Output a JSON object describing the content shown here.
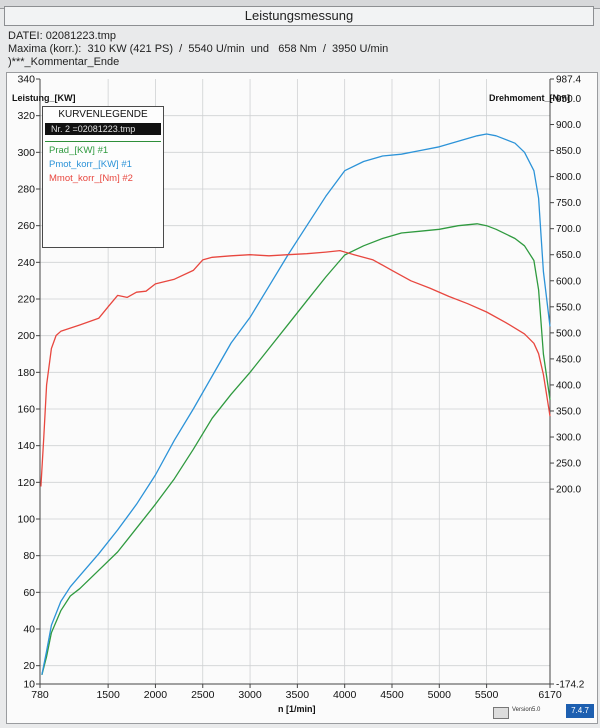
{
  "window": {
    "title": "Leistungsmessung"
  },
  "header": {
    "file_line": "DATEI: 02081223.tmp",
    "maxima_line": "Maxima (korr.):  310 KW (421 PS)  /  5540 U/min  und   658 Nm  /  3950 U/min",
    "comment_line": ")***_Kommentar_Ende"
  },
  "legend": {
    "title": "KURVENLEGENDE",
    "selected": "Nr. 2 =02081223.tmp",
    "items": [
      {
        "label": "Prad_[KW] #1",
        "color": "#2f9a3f"
      },
      {
        "label": "Pmot_korr_[KW] #1",
        "color": "#2c93d8"
      },
      {
        "label": "Mmot_korr_[Nm] #2",
        "color": "#e8473f"
      }
    ]
  },
  "footer": {
    "version": "Version5.0",
    "badge": "7.4.7"
  },
  "chart_data": {
    "type": "line",
    "xlabel": "n  [1/min]",
    "ylabel_left": "Leistung_[KW]",
    "ylabel_right": "Drehmoment_[Nm]",
    "xlim": [
      780,
      6170
    ],
    "ylim_left": [
      10,
      340
    ],
    "ylim_right": [
      -174.2,
      987.4
    ],
    "x_ticks": [
      780,
      1500,
      2000,
      2500,
      3000,
      3500,
      4000,
      4500,
      5000,
      5500,
      6170
    ],
    "y_ticks_left": [
      340,
      320,
      300,
      280,
      260,
      240,
      220,
      200,
      180,
      160,
      140,
      120,
      100,
      80,
      60,
      40,
      20,
      10
    ],
    "y_ticks_right": [
      987.4,
      950.0,
      900.0,
      850.0,
      800.0,
      750.0,
      700.0,
      650.0,
      600.0,
      550.0,
      500.0,
      450.0,
      400.0,
      350.0,
      300.0,
      250.0,
      200.0,
      -174.2
    ],
    "grid": true,
    "legend_position": "top-left",
    "series": [
      {
        "name": "Prad_[KW] #1",
        "axis": "left",
        "color": "#2f9a3f",
        "x": [
          800,
          850,
          900,
          1000,
          1100,
          1200,
          1400,
          1600,
          1800,
          2000,
          2200,
          2400,
          2600,
          2800,
          3000,
          3200,
          3400,
          3600,
          3800,
          4000,
          4200,
          4400,
          4600,
          4800,
          5000,
          5200,
          5400,
          5500,
          5600,
          5800,
          5900,
          6000,
          6050,
          6100,
          6170
        ],
        "y": [
          15,
          25,
          38,
          50,
          58,
          62,
          72,
          82,
          95,
          108,
          122,
          138,
          155,
          168,
          180,
          193,
          206,
          219,
          232,
          244,
          249,
          253,
          256,
          257,
          258,
          260,
          261,
          260,
          258,
          253,
          249,
          241,
          225,
          190,
          165
        ]
      },
      {
        "name": "Pmot_korr_[KW] #1",
        "axis": "left",
        "color": "#2c93d8",
        "x": [
          800,
          850,
          900,
          1000,
          1100,
          1200,
          1400,
          1600,
          1800,
          2000,
          2200,
          2400,
          2600,
          2800,
          3000,
          3200,
          3400,
          3600,
          3800,
          4000,
          4200,
          4400,
          4600,
          4800,
          5000,
          5200,
          5400,
          5500,
          5600,
          5800,
          5900,
          6000,
          6050,
          6100,
          6170
        ],
        "y": [
          15,
          28,
          42,
          55,
          63,
          69,
          81,
          94,
          108,
          124,
          143,
          160,
          178,
          196,
          210,
          227,
          244,
          260,
          276,
          290,
          295,
          298,
          299,
          301,
          303,
          306,
          309,
          310,
          309,
          305,
          300,
          290,
          275,
          235,
          205
        ]
      },
      {
        "name": "Mmot_korr_[Nm] #2",
        "axis": "right",
        "color": "#e8473f",
        "x": [
          790,
          820,
          850,
          900,
          950,
          1000,
          1200,
          1400,
          1500,
          1600,
          1700,
          1800,
          1900,
          2000,
          2200,
          2400,
          2500,
          2600,
          2800,
          3000,
          3200,
          3400,
          3600,
          3800,
          3950,
          4100,
          4300,
          4500,
          4700,
          4900,
          5100,
          5300,
          5500,
          5700,
          5900,
          6000,
          6050,
          6100,
          6170
        ],
        "y": [
          205,
          300,
          400,
          470,
          495,
          503,
          515,
          528,
          550,
          572,
          568,
          578,
          580,
          594,
          603,
          620,
          640,
          645,
          648,
          650,
          648,
          650,
          652,
          655,
          658,
          650,
          640,
          620,
          600,
          586,
          570,
          556,
          540,
          520,
          498,
          480,
          460,
          420,
          340
        ]
      }
    ]
  }
}
